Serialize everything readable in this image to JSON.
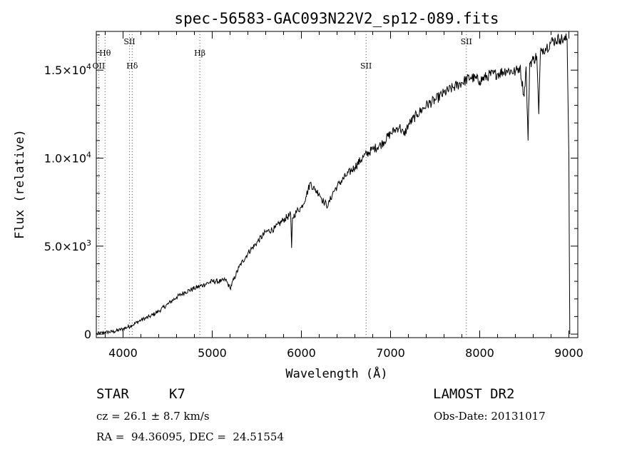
{
  "chart_data": {
    "type": "line",
    "title": "spec-56583-GAC093N22V2_sp12-089.fits",
    "xlabel": "Wavelength (Å)",
    "ylabel": "Flux (relative)",
    "xlim": [
      3700,
      9100
    ],
    "ylim": [
      -200,
      17200
    ],
    "grid": false,
    "xticks": [
      {
        "value": 4000,
        "label": "4000"
      },
      {
        "value": 5000,
        "label": "5000"
      },
      {
        "value": 6000,
        "label": "6000"
      },
      {
        "value": 7000,
        "label": "7000"
      },
      {
        "value": 8000,
        "label": "8000"
      },
      {
        "value": 9000,
        "label": "9000"
      }
    ],
    "yticks": [
      {
        "value": 0,
        "label": "0",
        "exp": ""
      },
      {
        "value": 5000,
        "label": "5.0×10",
        "exp": "3"
      },
      {
        "value": 10000,
        "label": "1.0×10",
        "exp": "4"
      },
      {
        "value": 15000,
        "label": "1.5×10",
        "exp": "4"
      }
    ],
    "x": [
      3700,
      3800,
      3900,
      4000,
      4100,
      4200,
      4300,
      4400,
      4500,
      4600,
      4700,
      4800,
      4900,
      5000,
      5100,
      5150,
      5200,
      5300,
      5400,
      5500,
      5600,
      5700,
      5800,
      5880,
      5890,
      5900,
      5950,
      6000,
      6050,
      6100,
      6150,
      6200,
      6250,
      6300,
      6350,
      6400,
      6500,
      6600,
      6700,
      6800,
      6900,
      7000,
      7050,
      7100,
      7150,
      7200,
      7300,
      7400,
      7500,
      7600,
      7700,
      7800,
      7900,
      8000,
      8100,
      8200,
      8300,
      8400,
      8450,
      8498,
      8520,
      8542,
      8560,
      8600,
      8640,
      8662,
      8680,
      8700,
      8750,
      8800,
      8850,
      8900,
      8950,
      8980,
      9000,
      9010
    ],
    "y": [
      0,
      100,
      150,
      300,
      500,
      800,
      1000,
      1300,
      1700,
      2100,
      2400,
      2600,
      2800,
      3000,
      3000,
      3100,
      2600,
      3800,
      4600,
      5200,
      5800,
      6000,
      6500,
      6800,
      4900,
      6600,
      7000,
      7200,
      7800,
      8600,
      8200,
      8000,
      7500,
      7300,
      8000,
      8400,
      9000,
      9500,
      10100,
      10500,
      10800,
      11400,
      11600,
      11800,
      11300,
      11900,
      12500,
      13000,
      13300,
      13700,
      14000,
      14300,
      14600,
      14400,
      14700,
      14800,
      15000,
      14900,
      15200,
      13500,
      15200,
      11000,
      15400,
      15600,
      15800,
      12500,
      15900,
      16200,
      16300,
      16600,
      16700,
      16800,
      16700,
      16800,
      10000,
      0
    ],
    "spectral_lines": [
      {
        "label": "Hθ",
        "wavelength": 3798,
        "row": 2
      },
      {
        "label": "OII",
        "wavelength": 3727,
        "row": 3
      },
      {
        "label": "SII",
        "wavelength": 4072,
        "row": 1
      },
      {
        "label": "Hδ",
        "wavelength": 4102,
        "row": 3
      },
      {
        "label": "Hβ",
        "wavelength": 4861,
        "row": 2
      },
      {
        "label": "SII",
        "wavelength": 6725,
        "row": 3
      },
      {
        "label": "SII",
        "wavelength": 7850,
        "row": 1
      }
    ]
  },
  "info": {
    "object_class": "STAR",
    "subclass": "K7",
    "cz": "cz = 26.1 ± 8.7 km/s",
    "radec": "RA =  94.36095, DEC =  24.51554",
    "survey": "LAMOST DR2",
    "obs_date": "Obs-Date: 20131017"
  }
}
